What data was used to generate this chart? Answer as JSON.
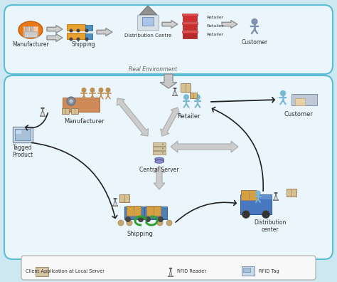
{
  "bg_color": "#cde8f0",
  "top_box_fill": "#eaf6fb",
  "top_box_ec": "#5bbcd4",
  "bottom_box_fill": "#eaf6fb",
  "bottom_box_ec": "#5bbcd4",
  "legend_box_fill": "#f8f8f8",
  "legend_box_ec": "#aaaaaa",
  "title_top": "Real Environment",
  "top_labels": [
    "Manufacturer",
    "Shipping",
    "Distribution Centre",
    "Retailer",
    "Customer"
  ],
  "bottom_labels": [
    "Manufacturer",
    "Retailer",
    "Customer",
    "Tagged\nProduct",
    "Central Server",
    "Shipping",
    "Distribution\ncenter"
  ],
  "legend_items": [
    "Client Application at Local Server",
    "RFID Reader",
    "RFID Tag"
  ],
  "arrow_gray": "#c0c0c0",
  "arrow_dark": "#333333",
  "arrow_ec": "#909090"
}
